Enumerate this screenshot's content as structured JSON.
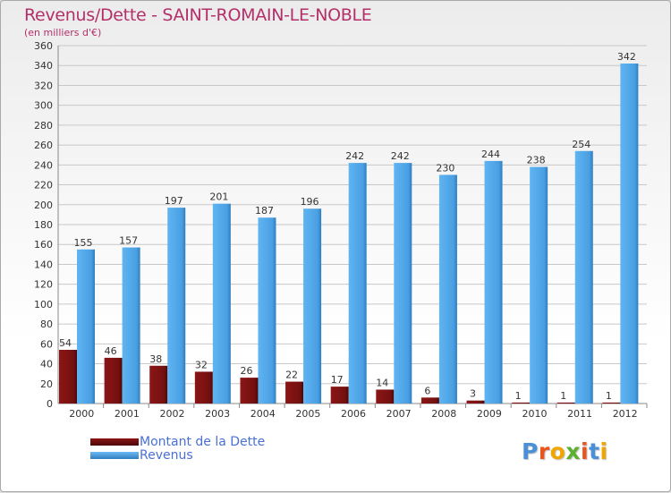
{
  "chart_data": {
    "type": "bar",
    "title": "Revenus/Dette - SAINT-ROMAIN-LE-NOBLE",
    "subtitle": "(en milliers d'€)",
    "categories": [
      "2000",
      "2001",
      "2002",
      "2003",
      "2004",
      "2005",
      "2006",
      "2007",
      "2008",
      "2009",
      "2010",
      "2011",
      "2012"
    ],
    "series": [
      {
        "name": "Montant de la Dette",
        "color": "#7a1010",
        "values": [
          54,
          46,
          38,
          32,
          26,
          22,
          17,
          14,
          6,
          3,
          1,
          1,
          1
        ]
      },
      {
        "name": "Revenus",
        "color": "#4aa3e6",
        "values": [
          155,
          157,
          197,
          201,
          187,
          196,
          242,
          242,
          230,
          244,
          238,
          254,
          342
        ]
      }
    ],
    "ylim": [
      0,
      360
    ],
    "yticks": [
      0,
      20,
      40,
      60,
      80,
      100,
      120,
      140,
      160,
      180,
      200,
      220,
      240,
      260,
      280,
      300,
      320,
      340,
      360
    ],
    "grid": true,
    "legend_position": "bottom-left"
  },
  "logo": {
    "text": "Proxiti",
    "colors": [
      "#4a90d9",
      "#e8561e",
      "#f0a500",
      "#5ab030",
      "#e8561e",
      "#4a90d9",
      "#f0a500"
    ]
  }
}
